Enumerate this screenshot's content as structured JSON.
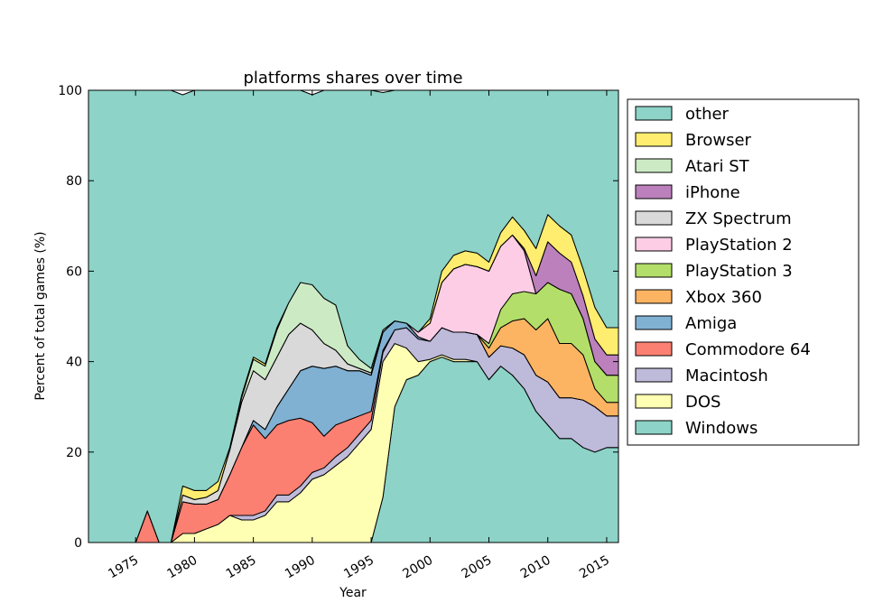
{
  "chart_data": {
    "type": "area",
    "stacked": true,
    "percent": true,
    "title": "platforms shares over time",
    "xlabel": "Year",
    "ylabel": "Percent of total games (%)",
    "xlim": [
      1971,
      2016
    ],
    "ylim": [
      0,
      100
    ],
    "xticks": [
      1975,
      1980,
      1985,
      1990,
      1995,
      2000,
      2005,
      2010,
      2015
    ],
    "yticks": [
      0,
      20,
      40,
      60,
      80,
      100
    ],
    "legend_position": "right-outside",
    "x": [
      1971,
      1972,
      1973,
      1974,
      1975,
      1976,
      1977,
      1978,
      1979,
      1980,
      1981,
      1982,
      1983,
      1984,
      1985,
      1986,
      1987,
      1988,
      1989,
      1990,
      1991,
      1992,
      1993,
      1994,
      1995,
      1996,
      1997,
      1998,
      1999,
      2000,
      2001,
      2002,
      2003,
      2004,
      2005,
      2006,
      2007,
      2008,
      2009,
      2010,
      2011,
      2012,
      2013,
      2014,
      2015,
      2016
    ],
    "series": [
      {
        "name": "Windows",
        "color": "#8dd3c7",
        "values": [
          0,
          0,
          0,
          0,
          0,
          0,
          0,
          0,
          0,
          0,
          0,
          0,
          0,
          0,
          0,
          0,
          0,
          0,
          0,
          0,
          0,
          0,
          0,
          0,
          0,
          10,
          30,
          36,
          37,
          40,
          41,
          40,
          40,
          40,
          36,
          39,
          37,
          34,
          29,
          26,
          23,
          23,
          21,
          20,
          21,
          21
        ]
      },
      {
        "name": "DOS",
        "color": "#ffffb3",
        "values": [
          0,
          0,
          0,
          0,
          0,
          0,
          0,
          0,
          2,
          2,
          3,
          4,
          6,
          5,
          5,
          6,
          9,
          9,
          11,
          14,
          15,
          17,
          19,
          22,
          25,
          30,
          14,
          7,
          3,
          0.5,
          0.5,
          0.5,
          0.5,
          0,
          0,
          0,
          0,
          0,
          0,
          0,
          0,
          0,
          0,
          0,
          0,
          0
        ]
      },
      {
        "name": "Macintosh",
        "color": "#bebada",
        "values": [
          0,
          0,
          0,
          0,
          0,
          0,
          0,
          0,
          0,
          0,
          0,
          0,
          0,
          1,
          1,
          1,
          1.5,
          1.5,
          1.5,
          1.5,
          1.5,
          2,
          2,
          2,
          2,
          2,
          3,
          4.5,
          5,
          4,
          6,
          6,
          6,
          6,
          5,
          4.5,
          6,
          7.5,
          8,
          9.5,
          9,
          9,
          10.5,
          10,
          7,
          7
        ]
      },
      {
        "name": "Commodore 64",
        "color": "#fb8072",
        "values": [
          0,
          0,
          0,
          0,
          0,
          7,
          0,
          0,
          7,
          6.5,
          5.5,
          5.5,
          9,
          15,
          20,
          16,
          15.5,
          16.5,
          15,
          11,
          7,
          7,
          6,
          4,
          2,
          0.5,
          0,
          0,
          0,
          0,
          0,
          0,
          0,
          0,
          0,
          0,
          0,
          0,
          0,
          0,
          0,
          0,
          0,
          0,
          0,
          0
        ]
      },
      {
        "name": "Amiga",
        "color": "#80b1d3",
        "values": [
          0,
          0,
          0,
          0,
          0,
          0,
          0,
          0,
          0,
          0,
          0,
          0,
          0,
          0,
          1,
          2,
          4,
          7,
          10.5,
          12.5,
          15,
          13,
          11,
          10,
          8,
          4,
          2,
          1,
          0.5,
          0,
          0,
          0,
          0,
          0,
          0,
          0,
          0,
          0,
          0,
          0,
          0,
          0,
          0,
          0,
          0,
          0
        ]
      },
      {
        "name": "Xbox 360",
        "color": "#fdb462",
        "values": [
          0,
          0,
          0,
          0,
          0,
          0,
          0,
          0,
          0,
          0,
          0,
          0,
          0,
          0,
          0,
          0,
          0,
          0,
          0,
          0,
          0,
          0,
          0,
          0,
          0,
          0,
          0,
          0,
          0,
          0,
          0,
          0,
          0,
          0,
          2,
          4,
          6,
          8,
          10,
          14,
          12,
          12,
          10,
          4,
          3,
          3
        ]
      },
      {
        "name": "PlayStation 3",
        "color": "#b3de69",
        "values": [
          0,
          0,
          0,
          0,
          0,
          0,
          0,
          0,
          0,
          0,
          0,
          0,
          0,
          0,
          0,
          0,
          0,
          0,
          0,
          0,
          0,
          0,
          0,
          0,
          0,
          0,
          0,
          0,
          0,
          0,
          0,
          0,
          0,
          0,
          1,
          4,
          6,
          6,
          8,
          8,
          12,
          11,
          8,
          6,
          6,
          6
        ]
      },
      {
        "name": "PlayStation 2",
        "color": "#fccde5",
        "values": [
          0,
          0,
          0,
          0,
          0,
          0,
          0,
          0,
          0,
          0,
          0,
          0,
          0,
          0,
          0,
          0,
          0,
          0,
          0,
          0,
          0,
          0,
          0,
          0,
          0,
          0,
          0,
          0,
          1,
          4,
          10,
          14,
          15,
          15,
          16,
          14,
          13,
          9,
          0,
          0,
          0,
          0,
          0,
          0,
          0,
          0
        ]
      },
      {
        "name": "ZX Spectrum",
        "color": "#d9d9d9",
        "values": [
          0,
          0,
          0,
          0,
          0,
          0,
          0,
          0,
          1.5,
          1,
          1.5,
          2,
          5.5,
          10,
          11,
          11,
          11,
          12,
          10.5,
          8,
          5.5,
          3.5,
          1.5,
          0.5,
          0.5,
          0,
          0,
          0,
          0,
          0,
          0,
          0,
          0,
          0,
          0,
          0,
          0,
          0,
          0,
          0,
          0,
          0,
          0,
          0,
          0,
          0
        ]
      },
      {
        "name": "iPhone",
        "color": "#bc80bd",
        "values": [
          0,
          0,
          0,
          0,
          0,
          0,
          0,
          0,
          0,
          0,
          0,
          0,
          0,
          0,
          0,
          0,
          0,
          0,
          0,
          0,
          0,
          0,
          0,
          0,
          0,
          0,
          0,
          0,
          0,
          0,
          0,
          0,
          0,
          0,
          0,
          0,
          0,
          0.5,
          4,
          9,
          8,
          7,
          5,
          5,
          4.5,
          4.5
        ]
      },
      {
        "name": "Atari ST",
        "color": "#ccebc5",
        "values": [
          0,
          0,
          0,
          0,
          0,
          0,
          0,
          0,
          0,
          0,
          0,
          0,
          0,
          1,
          2.5,
          3,
          6,
          7,
          9,
          10,
          10,
          10,
          4,
          2,
          1,
          0.5,
          0,
          0,
          0,
          0,
          0,
          0,
          0,
          0,
          0,
          0,
          0,
          0,
          0,
          0,
          0,
          0,
          0,
          0,
          0,
          0
        ]
      },
      {
        "name": "Browser",
        "color": "#ffed6f",
        "values": [
          0,
          0,
          0,
          0,
          0,
          0,
          0,
          0,
          2,
          2,
          1.5,
          2,
          0.5,
          0.5,
          0.5,
          0.5,
          0.5,
          0,
          0,
          0,
          0,
          0,
          0,
          0,
          0,
          0,
          0,
          0,
          0,
          1,
          2.5,
          3,
          3,
          3,
          2,
          3,
          4,
          4,
          6,
          6,
          6,
          6,
          6,
          7,
          6,
          6
        ]
      },
      {
        "name": "other",
        "color": "#8dd3c7",
        "values": [
          100,
          100,
          100,
          100,
          100,
          93,
          100,
          100,
          86.5,
          88.5,
          88.5,
          86.5,
          79,
          67.5,
          60,
          60.5,
          53.5,
          49,
          44.5,
          42,
          46,
          47.5,
          56.5,
          59.5,
          61.5,
          52.5,
          51,
          51.5,
          53.5,
          50.5,
          40,
          36.5,
          35.5,
          36,
          38,
          31.5,
          28,
          31,
          35,
          27.5,
          30,
          32,
          39.5,
          48,
          52.5,
          52.5
        ]
      }
    ]
  }
}
